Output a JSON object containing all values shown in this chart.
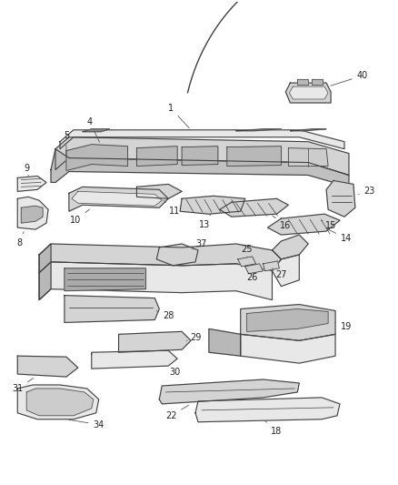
{
  "bg_color": "#ffffff",
  "line_color": "#404040",
  "label_color": "#222222",
  "fill_light": "#e8e8e8",
  "fill_mid": "#d4d4d4",
  "fill_dark": "#b8b8b8"
}
